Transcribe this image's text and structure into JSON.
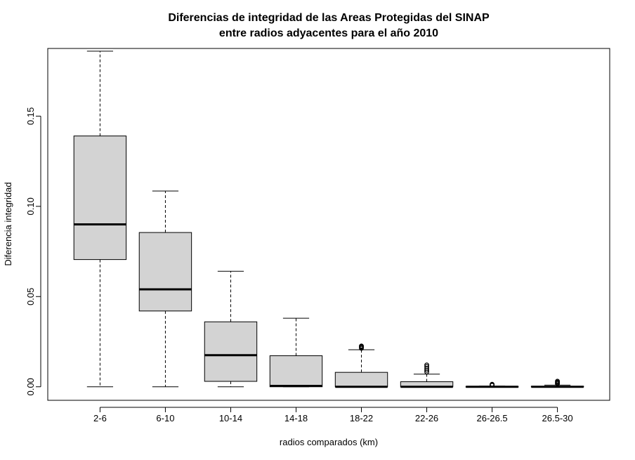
{
  "chart_data": {
    "type": "boxplot",
    "title_lines": [
      "Diferencias de integridad de las Areas Protegidas del SINAP",
      "entre radios adyacentes para el año 2010"
    ],
    "xlabel": "radios comparados (km)",
    "ylabel": "Diferencia integridad",
    "ylim": [
      -0.0075,
      0.1875
    ],
    "yticks": [
      0.0,
      0.05,
      0.1,
      0.15
    ],
    "ytick_labels": [
      "0.00",
      "0.05",
      "0.10",
      "0.15"
    ],
    "grid": false,
    "box_fill": "#d3d3d3",
    "categories": [
      "2-6",
      "6-10",
      "10-14",
      "14-18",
      "18-22",
      "22-26",
      "26-26.5",
      "26.5-30"
    ],
    "boxes": [
      {
        "whisker_low": 0.0,
        "q1": 0.0705,
        "median": 0.09,
        "q3": 0.139,
        "whisker_high": 0.186,
        "outliers": []
      },
      {
        "whisker_low": 0.0,
        "q1": 0.042,
        "median": 0.054,
        "q3": 0.0855,
        "whisker_high": 0.1085,
        "outliers": []
      },
      {
        "whisker_low": 0.0,
        "q1": 0.003,
        "median": 0.0175,
        "q3": 0.036,
        "whisker_high": 0.064,
        "outliers": []
      },
      {
        "whisker_low": 0.0,
        "q1": 0.0,
        "median": 0.0005,
        "q3": 0.0172,
        "whisker_high": 0.038,
        "outliers": []
      },
      {
        "whisker_low": 0.0,
        "q1": 0.0,
        "median": 0.0,
        "q3": 0.008,
        "whisker_high": 0.0205,
        "outliers": [
          0.0213,
          0.0218,
          0.0222,
          0.0226
        ]
      },
      {
        "whisker_low": 0.0,
        "q1": 0.0,
        "median": 0.0,
        "q3": 0.0028,
        "whisker_high": 0.007,
        "outliers": [
          0.0082,
          0.0092,
          0.0102,
          0.0112,
          0.0121
        ]
      },
      {
        "whisker_low": 0.0,
        "q1": 0.0,
        "median": 0.0,
        "q3": 0.0002,
        "whisker_high": 0.0004,
        "outliers": [
          0.0008,
          0.0011,
          0.0014
        ]
      },
      {
        "whisker_low": 0.0,
        "q1": 0.0,
        "median": 0.0,
        "q3": 0.0003,
        "whisker_high": 0.0009,
        "outliers": [
          0.0016,
          0.0021,
          0.0026,
          0.0031
        ]
      }
    ]
  }
}
